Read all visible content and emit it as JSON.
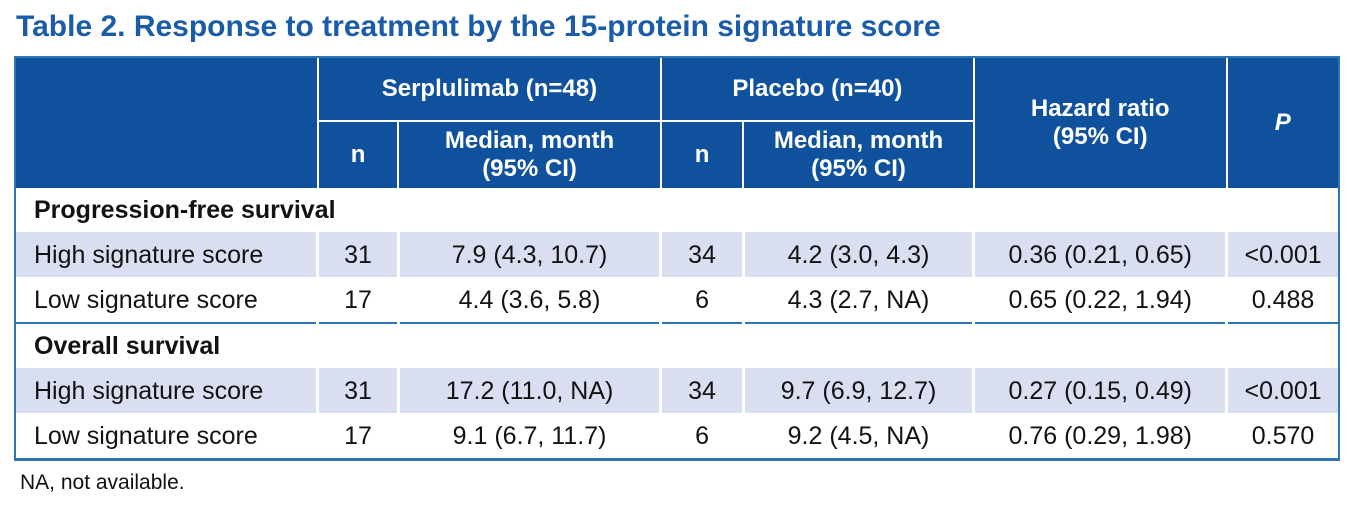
{
  "title": "Table 2. Response to treatment by the 15-protein signature score",
  "colors": {
    "title_blue": "#1b5caa",
    "header_bg": "#10519e",
    "row_highlight": "#d9def0",
    "border_blue": "#2e74b8"
  },
  "header": {
    "serplulimab_group": "Serplulimab (n=48)",
    "placebo_group": "Placebo (n=40)",
    "hazard_ratio": "Hazard ratio\n(95% CI)",
    "p": "P",
    "sub_n_1": "n",
    "sub_median_1": "Median, month\n(95% CI)",
    "sub_n_2": "n",
    "sub_median_2": "Median, month\n(95% CI)"
  },
  "sections": [
    {
      "name": "Progression-free survival",
      "rows": [
        {
          "cells": [
            "High signature score",
            "31",
            "7.9 (4.3, 10.7)",
            "34",
            "4.2 (3.0, 4.3)",
            "0.36 (0.21, 0.65)",
            "<0.001"
          ]
        },
        {
          "cells": [
            "Low signature score",
            "17",
            "4.4 (3.6, 5.8)",
            "6",
            "4.3 (2.7, NA)",
            "0.65 (0.22, 1.94)",
            "0.488"
          ]
        }
      ]
    },
    {
      "name": "Overall survival",
      "rows": [
        {
          "cells": [
            "High signature score",
            "31",
            "17.2 (11.0, NA)",
            "34",
            "9.7 (6.9, 12.7)",
            "0.27 (0.15, 0.49)",
            "<0.001"
          ]
        },
        {
          "cells": [
            "Low signature score",
            "17",
            "9.1 (6.7, 11.7)",
            "6",
            "9.2 (4.5, NA)",
            "0.76 (0.29, 1.98)",
            "0.570"
          ]
        }
      ]
    }
  ],
  "footnote": "NA, not available."
}
